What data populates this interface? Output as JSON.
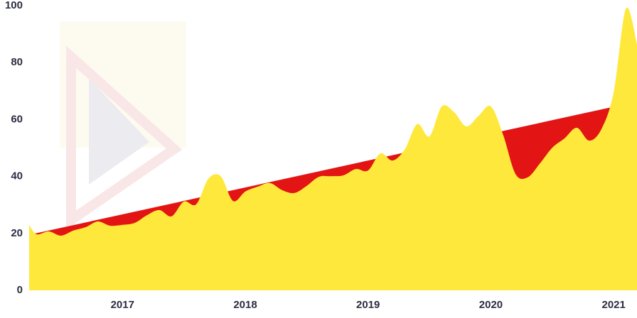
{
  "chart_data": {
    "type": "area",
    "x": [
      2016.24,
      2016.3,
      2016.4,
      2016.5,
      2016.6,
      2016.7,
      2016.8,
      2016.9,
      2017.0,
      2017.1,
      2017.2,
      2017.3,
      2017.4,
      2017.5,
      2017.6,
      2017.7,
      2017.8,
      2017.9,
      2018.0,
      2018.1,
      2018.2,
      2018.3,
      2018.4,
      2018.5,
      2018.6,
      2018.7,
      2018.8,
      2018.9,
      2019.0,
      2019.1,
      2019.2,
      2019.3,
      2019.4,
      2019.5,
      2019.6,
      2019.7,
      2019.8,
      2019.9,
      2020.0,
      2020.1,
      2020.2,
      2020.3,
      2020.4,
      2020.5,
      2020.6,
      2020.7,
      2020.8,
      2020.9,
      2021.0,
      2021.1,
      2021.19
    ],
    "series": [
      {
        "color": "#e31414",
        "x": [
          2016.24,
          2021.0
        ],
        "values": [
          19.5,
          64.5
        ]
      },
      {
        "color": "#ffe83c",
        "values": [
          23,
          19.7,
          20.7,
          19.2,
          21,
          22.2,
          24.2,
          22.7,
          23,
          23.7,
          26.4,
          28.2,
          26,
          31.2,
          30.2,
          39.2,
          40.1,
          31.4,
          34.7,
          36.4,
          37.7,
          35.2,
          34.2,
          36.7,
          39.9,
          40.1,
          40.4,
          42.6,
          42.1,
          48.1,
          45.6,
          49.6,
          58.4,
          54.1,
          64.6,
          62.6,
          57.6,
          61.3,
          64.6,
          54.6,
          40.9,
          39.7,
          44.6,
          50.1,
          53.4,
          57.1,
          52.6,
          56.6,
          69.6,
          99,
          86.5
        ]
      }
    ],
    "xlim": [
      2016.24,
      2021.19
    ],
    "xticks": [
      2017,
      2018,
      2019,
      2020,
      2021
    ],
    "ylim": [
      0,
      100
    ],
    "yticks": [
      0,
      20,
      40,
      60,
      80,
      100
    ]
  }
}
